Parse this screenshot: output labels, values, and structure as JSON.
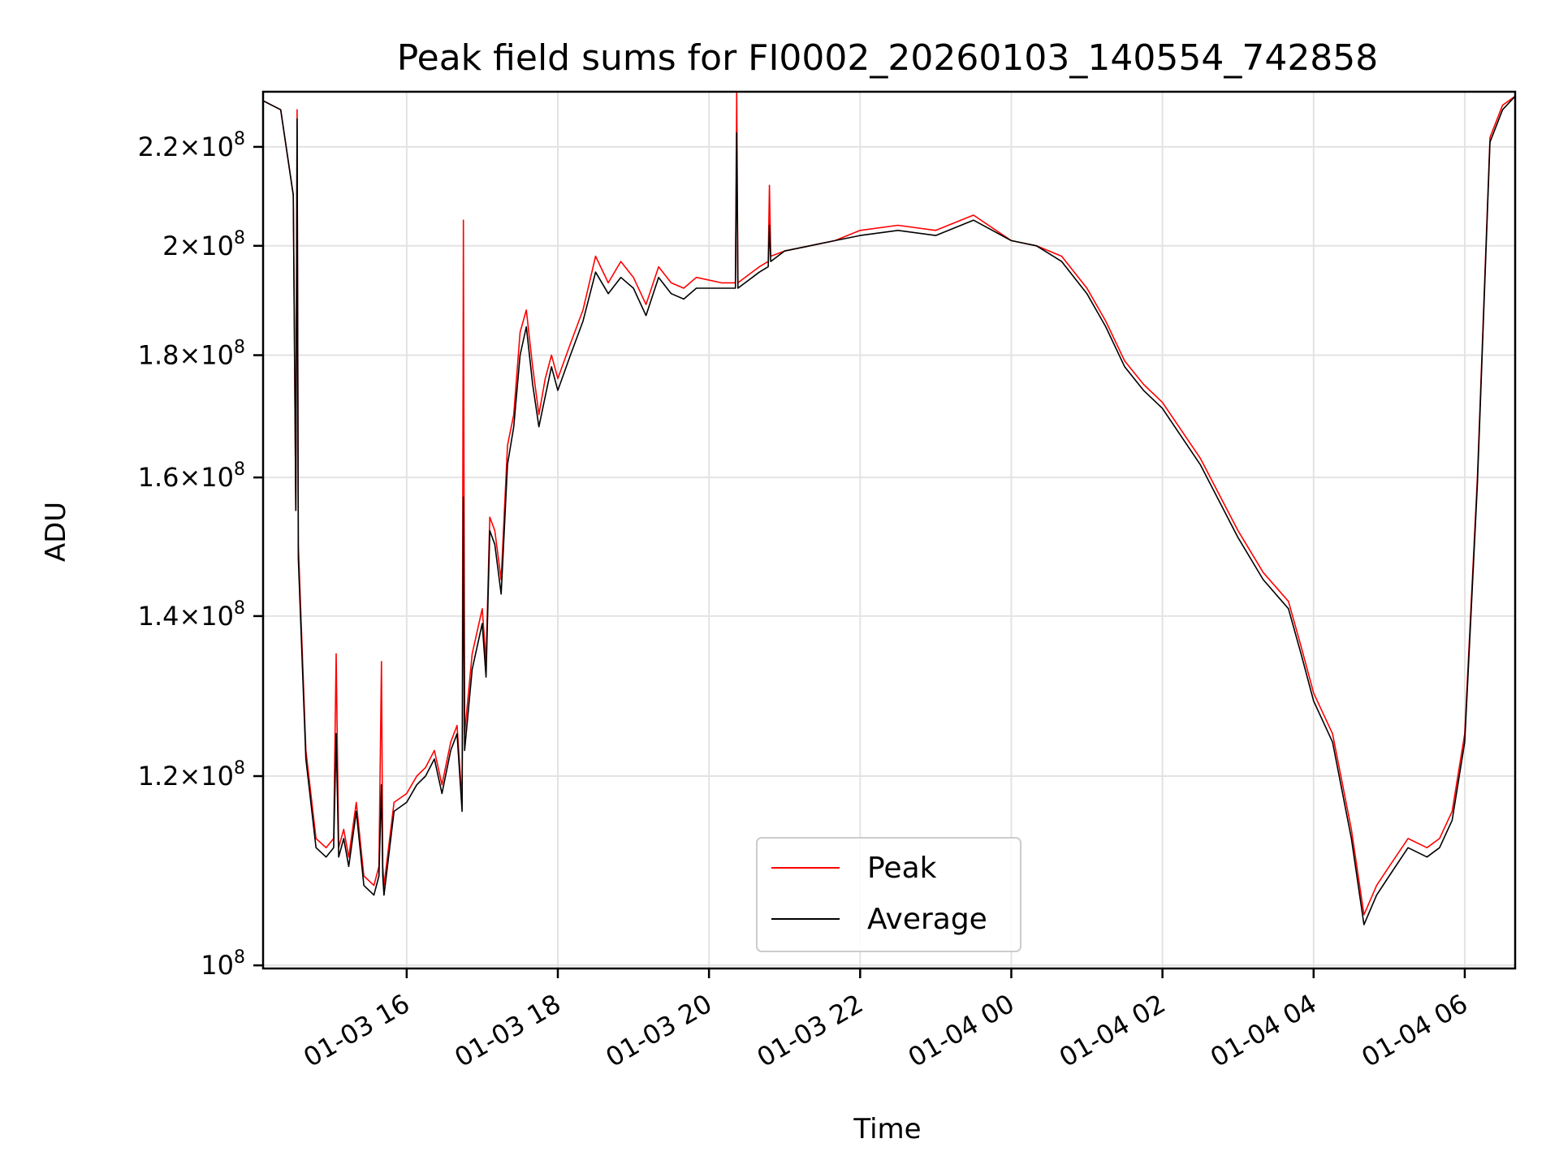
{
  "chart_data": {
    "type": "line",
    "title": "Peak field sums for FI0002_20260103_140554_742858",
    "xlabel": "Time",
    "ylabel": "ADU",
    "yscale": "log",
    "xlim": [
      "2026-01-03 14:06",
      "2026-01-04 06:40"
    ],
    "ylim": [
      99700000,
      232000000
    ],
    "grid": true,
    "legend_position": "lower-center",
    "x_ticks": [
      "2026-01-03 16:00",
      "2026-01-03 18:00",
      "2026-01-03 20:00",
      "2026-01-03 22:00",
      "2026-01-04 00:00",
      "2026-01-04 02:00",
      "2026-01-04 04:00",
      "2026-01-04 06:00"
    ],
    "x_tick_labels": [
      "01-03 16",
      "01-03 18",
      "01-03 20",
      "01-03 22",
      "01-04 00",
      "01-04 02",
      "01-04 04",
      "01-04 06"
    ],
    "y_ticks": [
      {
        "value": 100000000,
        "mantissa": "",
        "exp": "8"
      },
      {
        "value": 120000000,
        "mantissa": "1.2",
        "exp": "8"
      },
      {
        "value": 140000000,
        "mantissa": "1.4",
        "exp": "8"
      },
      {
        "value": 160000000,
        "mantissa": "1.6",
        "exp": "8"
      },
      {
        "value": 180000000,
        "mantissa": "1.8",
        "exp": "8"
      },
      {
        "value": 200000000,
        "mantissa": "2",
        "exp": "8"
      },
      {
        "value": 220000000,
        "mantissa": "2.2",
        "exp": "8"
      }
    ],
    "series": [
      {
        "name": "Peak",
        "color": "#ff0000",
        "x": [
          "2026-01-03 14:06",
          "2026-01-03 14:20",
          "2026-01-03 14:30",
          "2026-01-03 14:32",
          "2026-01-03 14:33",
          "2026-01-03 14:34",
          "2026-01-03 14:40",
          "2026-01-03 14:48",
          "2026-01-03 14:56",
          "2026-01-03 15:02",
          "2026-01-03 15:04",
          "2026-01-03 15:06",
          "2026-01-03 15:10",
          "2026-01-03 15:14",
          "2026-01-03 15:20",
          "2026-01-03 15:26",
          "2026-01-03 15:34",
          "2026-01-03 15:38",
          "2026-01-03 15:40",
          "2026-01-03 15:41",
          "2026-01-03 15:42",
          "2026-01-03 15:50",
          "2026-01-03 16:00",
          "2026-01-03 16:08",
          "2026-01-03 16:15",
          "2026-01-03 16:22",
          "2026-01-03 16:28",
          "2026-01-03 16:35",
          "2026-01-03 16:40",
          "2026-01-03 16:44",
          "2026-01-03 16:45",
          "2026-01-03 16:46",
          "2026-01-03 16:52",
          "2026-01-03 17:00",
          "2026-01-03 17:03",
          "2026-01-03 17:06",
          "2026-01-03 17:10",
          "2026-01-03 17:15",
          "2026-01-03 17:20",
          "2026-01-03 17:25",
          "2026-01-03 17:30",
          "2026-01-03 17:35",
          "2026-01-03 17:40",
          "2026-01-03 17:45",
          "2026-01-03 17:50",
          "2026-01-03 17:55",
          "2026-01-03 18:00",
          "2026-01-03 18:10",
          "2026-01-03 18:20",
          "2026-01-03 18:30",
          "2026-01-03 18:40",
          "2026-01-03 18:50",
          "2026-01-03 19:00",
          "2026-01-03 19:10",
          "2026-01-03 19:20",
          "2026-01-03 19:30",
          "2026-01-03 19:40",
          "2026-01-03 19:50",
          "2026-01-03 20:10",
          "2026-01-03 20:21",
          "2026-01-03 20:22",
          "2026-01-03 20:23",
          "2026-01-03 20:40",
          "2026-01-03 20:47",
          "2026-01-03 20:48",
          "2026-01-03 20:49",
          "2026-01-03 21:00",
          "2026-01-03 21:20",
          "2026-01-03 21:40",
          "2026-01-03 22:00",
          "2026-01-03 22:30",
          "2026-01-03 23:00",
          "2026-01-03 23:30",
          "2026-01-04 00:00",
          "2026-01-04 00:20",
          "2026-01-04 00:40",
          "2026-01-04 01:00",
          "2026-01-04 01:15",
          "2026-01-04 01:30",
          "2026-01-04 01:45",
          "2026-01-04 02:00",
          "2026-01-04 02:30",
          "2026-01-04 03:00",
          "2026-01-04 03:20",
          "2026-01-04 03:40",
          "2026-01-04 03:50",
          "2026-01-04 04:00",
          "2026-01-04 04:15",
          "2026-01-04 04:30",
          "2026-01-04 04:40",
          "2026-01-04 04:50",
          "2026-01-04 05:00",
          "2026-01-04 05:15",
          "2026-01-04 05:30",
          "2026-01-04 05:40",
          "2026-01-04 05:50",
          "2026-01-04 06:00",
          "2026-01-04 06:10",
          "2026-01-04 06:20",
          "2026-01-04 06:30",
          "2026-01-04 06:40"
        ],
        "values": [
          230000000,
          228000000,
          210000000,
          155000000,
          228000000,
          150000000,
          123000000,
          113000000,
          112000000,
          113000000,
          135000000,
          112000000,
          114000000,
          111000000,
          117000000,
          109000000,
          108000000,
          110000000,
          134000000,
          110000000,
          108000000,
          117000000,
          118000000,
          120000000,
          121000000,
          123000000,
          119000000,
          124000000,
          126000000,
          117000000,
          205000000,
          125000000,
          135000000,
          141000000,
          134000000,
          154000000,
          152000000,
          145000000,
          165000000,
          170000000,
          184000000,
          188000000,
          178000000,
          170000000,
          176000000,
          180000000,
          176000000,
          182000000,
          188000000,
          198000000,
          193000000,
          197000000,
          194000000,
          189000000,
          196000000,
          193000000,
          192000000,
          194000000,
          193000000,
          193000000,
          232000000,
          193000000,
          196000000,
          197000000,
          212000000,
          198000000,
          199000000,
          200000000,
          201000000,
          203000000,
          204000000,
          203000000,
          206000000,
          201000000,
          200000000,
          198000000,
          192000000,
          186000000,
          179000000,
          175000000,
          172000000,
          163000000,
          152000000,
          146000000,
          142000000,
          136000000,
          130000000,
          125000000,
          114000000,
          105000000,
          108000000,
          110000000,
          113000000,
          112000000,
          113000000,
          116000000,
          125000000,
          160000000,
          222000000,
          229000000,
          231000000
        ]
      },
      {
        "name": "Average",
        "color": "#000000",
        "x": [
          "2026-01-03 14:06",
          "2026-01-03 14:20",
          "2026-01-03 14:30",
          "2026-01-03 14:32",
          "2026-01-03 14:33",
          "2026-01-03 14:34",
          "2026-01-03 14:40",
          "2026-01-03 14:48",
          "2026-01-03 14:56",
          "2026-01-03 15:02",
          "2026-01-03 15:04",
          "2026-01-03 15:06",
          "2026-01-03 15:10",
          "2026-01-03 15:14",
          "2026-01-03 15:20",
          "2026-01-03 15:26",
          "2026-01-03 15:34",
          "2026-01-03 15:38",
          "2026-01-03 15:40",
          "2026-01-03 15:41",
          "2026-01-03 15:42",
          "2026-01-03 15:50",
          "2026-01-03 16:00",
          "2026-01-03 16:08",
          "2026-01-03 16:15",
          "2026-01-03 16:22",
          "2026-01-03 16:28",
          "2026-01-03 16:35",
          "2026-01-03 16:40",
          "2026-01-03 16:44",
          "2026-01-03 16:45",
          "2026-01-03 16:46",
          "2026-01-03 16:52",
          "2026-01-03 17:00",
          "2026-01-03 17:03",
          "2026-01-03 17:06",
          "2026-01-03 17:10",
          "2026-01-03 17:15",
          "2026-01-03 17:20",
          "2026-01-03 17:25",
          "2026-01-03 17:30",
          "2026-01-03 17:35",
          "2026-01-03 17:40",
          "2026-01-03 17:45",
          "2026-01-03 17:50",
          "2026-01-03 17:55",
          "2026-01-03 18:00",
          "2026-01-03 18:10",
          "2026-01-03 18:20",
          "2026-01-03 18:30",
          "2026-01-03 18:40",
          "2026-01-03 18:50",
          "2026-01-03 19:00",
          "2026-01-03 19:10",
          "2026-01-03 19:20",
          "2026-01-03 19:30",
          "2026-01-03 19:40",
          "2026-01-03 19:50",
          "2026-01-03 20:10",
          "2026-01-03 20:21",
          "2026-01-03 20:22",
          "2026-01-03 20:23",
          "2026-01-03 20:40",
          "2026-01-03 20:47",
          "2026-01-03 20:48",
          "2026-01-03 20:49",
          "2026-01-03 21:00",
          "2026-01-03 21:20",
          "2026-01-03 21:40",
          "2026-01-03 22:00",
          "2026-01-03 22:30",
          "2026-01-03 23:00",
          "2026-01-03 23:30",
          "2026-01-04 00:00",
          "2026-01-04 00:20",
          "2026-01-04 00:40",
          "2026-01-04 01:00",
          "2026-01-04 01:15",
          "2026-01-04 01:30",
          "2026-01-04 01:45",
          "2026-01-04 02:00",
          "2026-01-04 02:30",
          "2026-01-04 03:00",
          "2026-01-04 03:20",
          "2026-01-04 03:40",
          "2026-01-04 03:50",
          "2026-01-04 04:00",
          "2026-01-04 04:15",
          "2026-01-04 04:30",
          "2026-01-04 04:40",
          "2026-01-04 04:50",
          "2026-01-04 05:00",
          "2026-01-04 05:15",
          "2026-01-04 05:30",
          "2026-01-04 05:40",
          "2026-01-04 05:50",
          "2026-01-04 06:00",
          "2026-01-04 06:10",
          "2026-01-04 06:20",
          "2026-01-04 06:30",
          "2026-01-04 06:40"
        ],
        "values": [
          230000000,
          228000000,
          210000000,
          155000000,
          226000000,
          148000000,
          122000000,
          112000000,
          111000000,
          112000000,
          125000000,
          111000000,
          113000000,
          110000000,
          116000000,
          108000000,
          107000000,
          109000000,
          119000000,
          109000000,
          107000000,
          116000000,
          117000000,
          119000000,
          120000000,
          122000000,
          118000000,
          123000000,
          125000000,
          116000000,
          157000000,
          123000000,
          133000000,
          139000000,
          132000000,
          152000000,
          150000000,
          143000000,
          162000000,
          168000000,
          180000000,
          185000000,
          175000000,
          168000000,
          173000000,
          178000000,
          174000000,
          180000000,
          186000000,
          195000000,
          191000000,
          194000000,
          192000000,
          187000000,
          194000000,
          191000000,
          190000000,
          192000000,
          192000000,
          192000000,
          223000000,
          192000000,
          195000000,
          196000000,
          204000000,
          197000000,
          199000000,
          200000000,
          201000000,
          202000000,
          203000000,
          202000000,
          205000000,
          201000000,
          200000000,
          197000000,
          191000000,
          185000000,
          178000000,
          174000000,
          171000000,
          162000000,
          151000000,
          145000000,
          141000000,
          135000000,
          129000000,
          124000000,
          113000000,
          104000000,
          107000000,
          109000000,
          112000000,
          111000000,
          112000000,
          115000000,
          124000000,
          159000000,
          221000000,
          228000000,
          231000000
        ]
      }
    ]
  }
}
